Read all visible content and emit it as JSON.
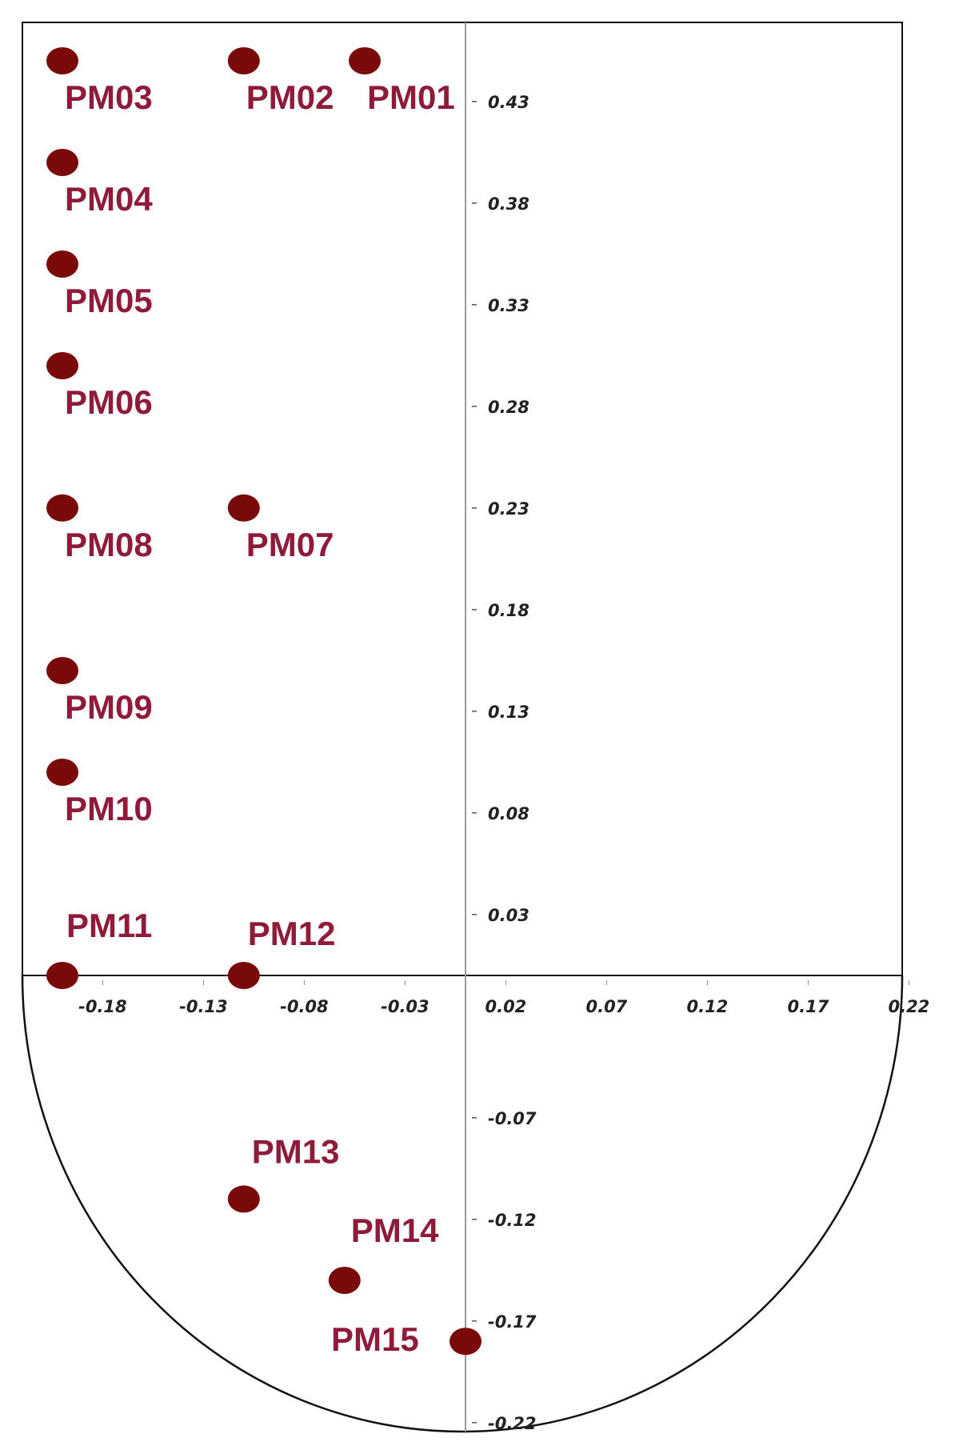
{
  "chart_data": {
    "type": "scatter",
    "title": "",
    "xlabel": "",
    "ylabel": "",
    "xlim": [
      -0.2,
      0.22
    ],
    "ylim": [
      -0.22,
      0.46
    ],
    "x_ticks": [
      "-0.18",
      "-0.13",
      "-0.08",
      "-0.03",
      "0.02",
      "0.07",
      "0.12",
      "0.17",
      "0.22"
    ],
    "y_ticks": [
      "0.43",
      "0.38",
      "0.33",
      "0.28",
      "0.23",
      "0.18",
      "0.13",
      "0.08",
      "0.03",
      "-0.07",
      "-0.12",
      "-0.17",
      "-0.22"
    ],
    "grid": false,
    "legend": "none",
    "marker_color": "#7a0a0a",
    "label_color": "#8e1b3a",
    "points": [
      {
        "label": "PM01",
        "x": -0.05,
        "y": 0.45
      },
      {
        "label": "PM02",
        "x": -0.11,
        "y": 0.45
      },
      {
        "label": "PM03",
        "x": -0.2,
        "y": 0.45
      },
      {
        "label": "PM04",
        "x": -0.2,
        "y": 0.4
      },
      {
        "label": "PM05",
        "x": -0.2,
        "y": 0.35
      },
      {
        "label": "PM06",
        "x": -0.2,
        "y": 0.3
      },
      {
        "label": "PM07",
        "x": -0.11,
        "y": 0.23
      },
      {
        "label": "PM08",
        "x": -0.2,
        "y": 0.23
      },
      {
        "label": "PM09",
        "x": -0.2,
        "y": 0.15
      },
      {
        "label": "PM10",
        "x": -0.2,
        "y": 0.1
      },
      {
        "label": "PM11",
        "x": -0.2,
        "y": 0.0
      },
      {
        "label": "PM12",
        "x": -0.11,
        "y": 0.0
      },
      {
        "label": "PM13",
        "x": -0.11,
        "y": -0.11
      },
      {
        "label": "PM14",
        "x": -0.06,
        "y": -0.15
      },
      {
        "label": "PM15",
        "x": 0.0,
        "y": -0.18
      }
    ]
  }
}
